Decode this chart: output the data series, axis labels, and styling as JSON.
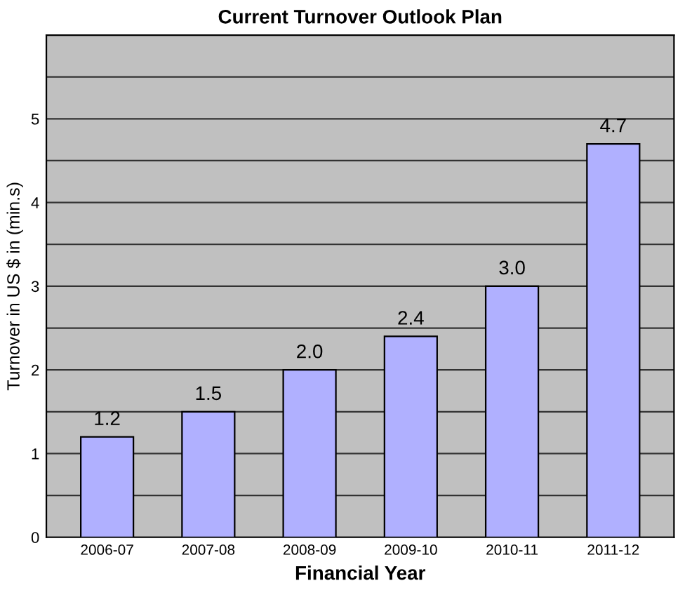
{
  "chart_data": {
    "type": "bar",
    "title": "Current Turnover Outlook Plan",
    "xlabel": "Financial Year",
    "ylabel": "Turnover in US $ in (min.s)",
    "categories": [
      "2006-07",
      "2007-08",
      "2008-09",
      "2009-10",
      "2010-11",
      "2011-12"
    ],
    "values": [
      1.2,
      1.5,
      2.0,
      2.4,
      3.0,
      4.7
    ],
    "value_labels": [
      "1.2",
      "1.5",
      "2.0",
      "2.4",
      "3.0",
      "4.7"
    ],
    "color": "#b0b0ff",
    "ylim": [
      0,
      6
    ],
    "yticks": [
      0,
      {
        "value": 0.5,
        "label": null
      },
      1,
      {
        "value": 1.5,
        "label": null
      },
      2,
      {
        "value": 2.5,
        "label": null
      },
      3,
      {
        "value": 3.5,
        "label": null
      },
      4,
      {
        "value": 4.5,
        "label": null
      },
      5,
      {
        "value": 5.5,
        "label": null
      }
    ],
    "grid": "y",
    "legend": false
  }
}
